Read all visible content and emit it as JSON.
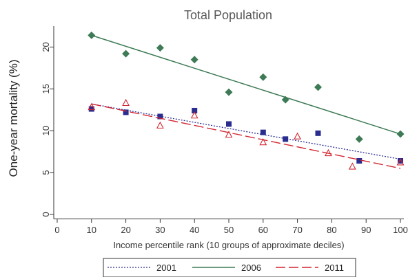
{
  "chart_data": {
    "type": "scatter",
    "title": "Total Population",
    "xlabel": "Income percentile rank (10 groups of approximate deciles)",
    "ylabel": "One-year mortality (%)",
    "xlim": [
      -1,
      101
    ],
    "ylim": [
      -0.5,
      22.5
    ],
    "xticks": [
      0,
      10,
      20,
      30,
      40,
      50,
      60,
      70,
      80,
      90,
      100
    ],
    "yticks": [
      0,
      5,
      10,
      15,
      20
    ],
    "grid": false,
    "legend_position": "bottom",
    "series": [
      {
        "name": "2001",
        "color": "#2a2d8e",
        "marker": "square",
        "line_style": "dotted",
        "points": [
          [
            10,
            12.6
          ],
          [
            20,
            12.2
          ],
          [
            30,
            11.7
          ],
          [
            40,
            12.4
          ],
          [
            50,
            10.8
          ],
          [
            60,
            9.8
          ],
          [
            66.5,
            9.0
          ],
          [
            76,
            9.7
          ],
          [
            88,
            6.4
          ],
          [
            100,
            6.4
          ]
        ],
        "fit": [
          [
            10,
            13.2
          ],
          [
            100,
            6.6
          ]
        ]
      },
      {
        "name": "2006",
        "color": "#3d7a55",
        "marker": "diamond",
        "line_style": "solid",
        "points": [
          [
            10,
            21.4
          ],
          [
            20,
            19.2
          ],
          [
            30,
            19.9
          ],
          [
            40,
            18.5
          ],
          [
            50,
            14.6
          ],
          [
            60,
            16.4
          ],
          [
            66.5,
            13.7
          ],
          [
            76,
            15.2
          ],
          [
            88,
            9.0
          ],
          [
            100,
            9.6
          ]
        ],
        "fit": [
          [
            10,
            21.4
          ],
          [
            100,
            9.6
          ]
        ]
      },
      {
        "name": "2011",
        "color": "#d22630",
        "marker": "triangle",
        "line_style": "dashed",
        "points": [
          [
            10,
            12.8
          ],
          [
            20,
            13.3
          ],
          [
            30,
            10.6
          ],
          [
            40,
            11.8
          ],
          [
            50,
            9.5
          ],
          [
            60,
            8.6
          ],
          [
            70,
            9.3
          ],
          [
            79,
            7.3
          ],
          [
            86,
            5.7
          ],
          [
            100,
            6.2
          ]
        ],
        "fit": [
          [
            10,
            13.2
          ],
          [
            100,
            5.5
          ]
        ]
      }
    ]
  }
}
